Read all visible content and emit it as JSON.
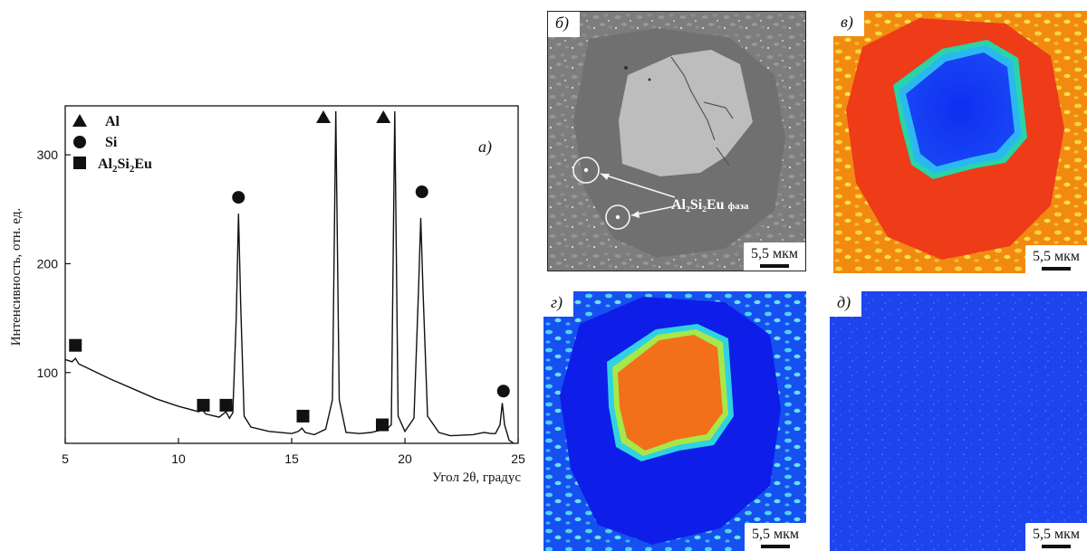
{
  "panels": {
    "a": {
      "label": "а)"
    },
    "b": {
      "label": "б)",
      "scalebar": "5,5 мкм",
      "annotation": {
        "main": "Al₂Si₂Eu",
        "sub": "фаза"
      }
    },
    "c": {
      "label": "в)",
      "scalebar": "5,5 мкм"
    },
    "d": {
      "label": "г)",
      "scalebar": "5,5 мкм"
    },
    "e": {
      "label": "д)",
      "scalebar": "5,5 мкм"
    }
  },
  "chart_data": {
    "type": "line",
    "xlabel": "Угол 2θ, градус",
    "ylabel": "Интенсивность, отн. ед.",
    "xlim": [
      5,
      25
    ],
    "ylim": [
      35,
      345
    ],
    "xticks": [
      5,
      10,
      15,
      20,
      25
    ],
    "yticks": [
      100,
      200,
      300
    ],
    "grid": false,
    "legend_position": "top-left",
    "legend": [
      {
        "marker": "triangle",
        "text": "Al"
      },
      {
        "marker": "circle",
        "text": "Si"
      },
      {
        "marker": "square",
        "text": "Al2Si2Eu",
        "main1": "Al",
        "sub1": "2",
        "main2": "Si",
        "sub2": "2",
        "main3": "Eu"
      }
    ],
    "series": [
      {
        "x": [
          5,
          5.3,
          5.45,
          5.6,
          6,
          7,
          8,
          9,
          10,
          10.9,
          11.05,
          11.2,
          11.8,
          12.1,
          12.25,
          12.4,
          12.55,
          12.65,
          12.75,
          12.9,
          13.2,
          14,
          15,
          15.3,
          15.45,
          15.6,
          16,
          16.5,
          16.8,
          16.95,
          17.1,
          17.4,
          18,
          18.5,
          18.9,
          19.05,
          19.2,
          19.4,
          19.55,
          19.7,
          20,
          20.4,
          20.6,
          20.7,
          20.8,
          21,
          21.5,
          22,
          23,
          23.5,
          23.8,
          24,
          24.2,
          24.3,
          24.4,
          24.6,
          24.8
        ],
        "y": [
          112,
          110,
          113,
          108,
          104,
          94,
          85,
          76,
          69,
          64,
          66,
          62,
          59,
          64,
          58,
          63,
          150,
          246,
          160,
          60,
          50,
          46,
          44,
          46,
          49,
          45,
          43,
          48,
          75,
          340,
          75,
          45,
          44,
          45,
          47,
          54,
          48,
          52,
          340,
          60,
          46,
          58,
          175,
          242,
          175,
          60,
          45,
          42,
          43,
          45,
          44,
          44,
          52,
          72,
          52,
          38,
          32
        ]
      }
    ],
    "markers": [
      {
        "type": "triangle",
        "x": 16.4,
        "y": 335
      },
      {
        "type": "triangle",
        "x": 19.05,
        "y": 335
      },
      {
        "type": "circle",
        "x": 12.65,
        "y": 261
      },
      {
        "type": "circle",
        "x": 20.75,
        "y": 266
      },
      {
        "type": "circle",
        "x": 24.35,
        "y": 83
      },
      {
        "type": "square",
        "x": 5.45,
        "y": 125
      },
      {
        "type": "square",
        "x": 11.1,
        "y": 70
      },
      {
        "type": "square",
        "x": 12.1,
        "y": 70
      },
      {
        "type": "square",
        "x": 15.5,
        "y": 60
      },
      {
        "type": "square",
        "x": 19.0,
        "y": 52
      }
    ],
    "panel_label": "а)"
  }
}
